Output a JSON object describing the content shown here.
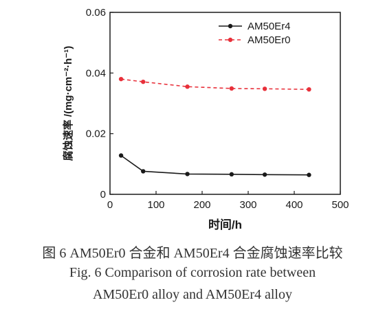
{
  "chart_data": {
    "type": "line",
    "xlabel": "时间/h",
    "ylabel": "腐蚀速率 /(mg·cm⁻²·h⁻¹)",
    "xlim": [
      0,
      500
    ],
    "ylim": [
      0,
      0.06
    ],
    "xticks": [
      0,
      100,
      200,
      300,
      400,
      500
    ],
    "yticks": [
      0,
      0.02,
      0.04,
      0.06
    ],
    "xtick_labels": [
      "0",
      "100",
      "200",
      "300",
      "400",
      "500"
    ],
    "ytick_labels": [
      "0",
      "0.02",
      "0.04",
      "0.06"
    ],
    "grid": false,
    "legend_position": "top-right",
    "series": [
      {
        "name": "AM50Er4",
        "color": "#1a1a1a",
        "line_style": "solid",
        "marker": "circle",
        "x": [
          24,
          72,
          168,
          264,
          336,
          432
        ],
        "y": [
          0.0128,
          0.0076,
          0.0067,
          0.0066,
          0.0065,
          0.0064
        ]
      },
      {
        "name": "AM50Er0",
        "color": "#e8303a",
        "line_style": "dashed",
        "marker": "circle",
        "x": [
          24,
          72,
          168,
          264,
          336,
          432
        ],
        "y": [
          0.038,
          0.0371,
          0.0355,
          0.0349,
          0.0348,
          0.0346
        ]
      }
    ]
  },
  "caption": {
    "cn": "图 6   AM50Er0 合金和 AM50Er4 合金腐蚀速率比较",
    "en_line1": "Fig. 6   Comparison of corrosion rate between",
    "en_line2": "AM50Er0 alloy and AM50Er4 alloy"
  }
}
